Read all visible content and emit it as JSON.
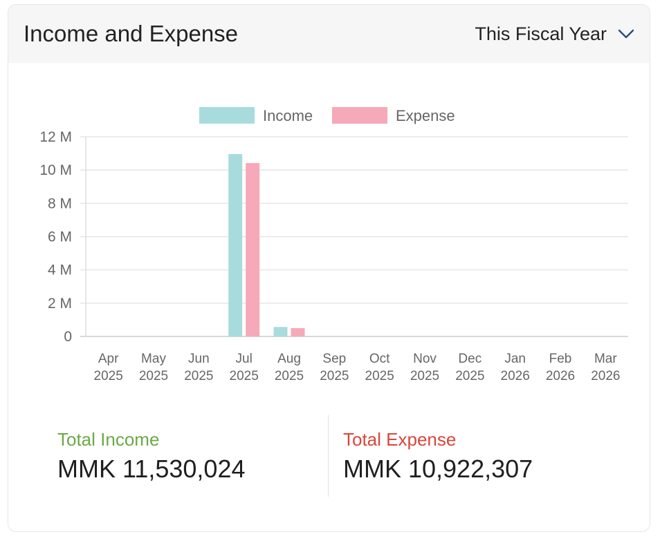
{
  "header": {
    "title": "Income and Expense",
    "period_label": "This Fiscal Year",
    "chevron_icon": "chevron-down-icon"
  },
  "chart_data": {
    "type": "bar",
    "categories": [
      [
        "Apr",
        "2025"
      ],
      [
        "May",
        "2025"
      ],
      [
        "Jun",
        "2025"
      ],
      [
        "Jul",
        "2025"
      ],
      [
        "Aug",
        "2025"
      ],
      [
        "Sep",
        "2025"
      ],
      [
        "Oct",
        "2025"
      ],
      [
        "Nov",
        "2025"
      ],
      [
        "Dec",
        "2025"
      ],
      [
        "Jan",
        "2026"
      ],
      [
        "Feb",
        "2026"
      ],
      [
        "Mar",
        "2026"
      ]
    ],
    "series": [
      {
        "name": "Income",
        "color": "#a8dcdc",
        "values": [
          0,
          0,
          0,
          10960000,
          570000,
          0,
          0,
          0,
          0,
          0,
          0,
          0
        ]
      },
      {
        "name": "Expense",
        "color": "#f6a9b8",
        "values": [
          0,
          0,
          0,
          10420000,
          500000,
          0,
          0,
          0,
          0,
          0,
          0,
          0
        ]
      }
    ],
    "ylim": [
      0,
      12000000
    ],
    "yticks": [
      0,
      2000000,
      4000000,
      6000000,
      8000000,
      10000000,
      12000000
    ],
    "ytick_labels": [
      "0",
      "2 M",
      "4 M",
      "6 M",
      "8 M",
      "10 M",
      "12 M"
    ],
    "grid": true,
    "legend_position": "top-center"
  },
  "totals": {
    "income_label": "Total Income",
    "income_value": "MMK 11,530,024",
    "income_color": "#6aaa45",
    "expense_label": "Total Expense",
    "expense_value": "MMK 10,922,307",
    "expense_color": "#d9463a"
  }
}
